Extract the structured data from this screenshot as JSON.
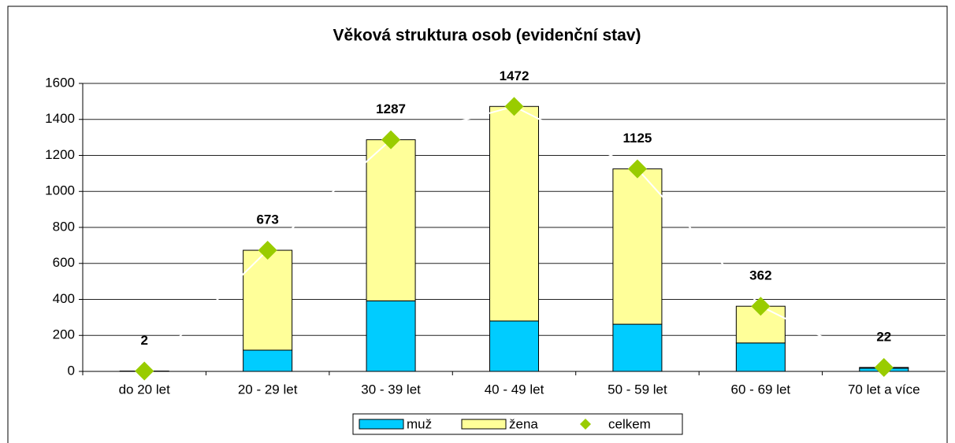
{
  "chart_data": {
    "type": "bar",
    "stacked": true,
    "title": "Věková struktura osob (evidenční stav)",
    "categories": [
      "do 20 let",
      "20 - 29 let",
      "30 - 39 let",
      "40 - 49 let",
      "50 - 59 let",
      "60 - 69 let",
      "70 let a více"
    ],
    "series": [
      {
        "name": "muž",
        "color": "#00CCFF",
        "values": [
          0,
          118,
          392,
          280,
          262,
          158,
          18
        ]
      },
      {
        "name": "žena",
        "color": "#FFFF99",
        "values": [
          2,
          555,
          895,
          1192,
          863,
          204,
          4
        ]
      },
      {
        "name": "celkem",
        "type": "line",
        "color": "#99CC00",
        "values": [
          2,
          673,
          1287,
          1472,
          1125,
          362,
          22
        ]
      }
    ],
    "ylim": [
      0,
      1600
    ],
    "yticks": [
      0,
      200,
      400,
      600,
      800,
      1000,
      1200,
      1400,
      1600
    ],
    "grid": true,
    "legend": "bottom"
  }
}
